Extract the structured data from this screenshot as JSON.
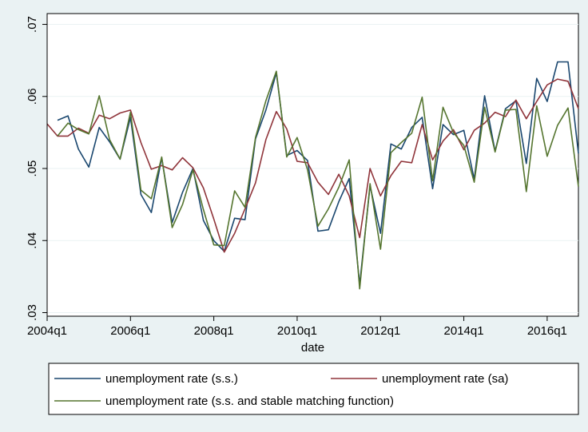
{
  "chart_data": {
    "type": "line",
    "xlabel": "date",
    "ylabel": "",
    "xlim": [
      2004.0,
      2016.75
    ],
    "ylim": [
      0.0295,
      0.0715
    ],
    "x_ticks": [
      {
        "value": 2004.0,
        "label": "2004q1"
      },
      {
        "value": 2006.0,
        "label": "2006q1"
      },
      {
        "value": 2008.0,
        "label": "2008q1"
      },
      {
        "value": 2010.0,
        "label": "2010q1"
      },
      {
        "value": 2012.0,
        "label": "2012q1"
      },
      {
        "value": 2014.0,
        "label": "2014q1"
      },
      {
        "value": 2016.0,
        "label": "2016q1"
      }
    ],
    "y_ticks": [
      {
        "value": 0.03,
        "label": ".03"
      },
      {
        "value": 0.04,
        "label": ".04"
      },
      {
        "value": 0.05,
        "label": ".05"
      },
      {
        "value": 0.06,
        "label": ".06"
      },
      {
        "value": 0.07,
        "label": ".07"
      }
    ],
    "grid": true,
    "legend_position": "bottom",
    "x": [
      "2004q1",
      "2004q2",
      "2004q3",
      "2004q4",
      "2005q1",
      "2005q2",
      "2005q3",
      "2005q4",
      "2006q1",
      "2006q2",
      "2006q3",
      "2006q4",
      "2007q1",
      "2007q2",
      "2007q3",
      "2007q4",
      "2008q1",
      "2008q2",
      "2008q3",
      "2008q4",
      "2009q1",
      "2009q2",
      "2009q3",
      "2009q4",
      "2010q1",
      "2010q2",
      "2010q3",
      "2010q4",
      "2011q1",
      "2011q2",
      "2011q3",
      "2011q4",
      "2012q1",
      "2012q2",
      "2012q3",
      "2012q4",
      "2013q1",
      "2013q2",
      "2013q3",
      "2013q4",
      "2014q1",
      "2014q2",
      "2014q3",
      "2014q4",
      "2015q1",
      "2015q2",
      "2015q3",
      "2015q4",
      "2016q1",
      "2016q2",
      "2016q3",
      "2016q4"
    ],
    "series": [
      {
        "name": "unemployment rate (s.s.)",
        "color": "#1a476f",
        "values": [
          null,
          0.0567,
          0.0573,
          0.0527,
          0.0502,
          0.0557,
          0.0537,
          0.0513,
          0.0571,
          0.0464,
          0.0439,
          0.0515,
          0.0425,
          0.0467,
          0.05,
          0.0428,
          0.04,
          0.0385,
          0.0431,
          0.0429,
          0.0541,
          0.0581,
          0.0633,
          0.0518,
          0.0525,
          0.0511,
          0.0413,
          0.0415,
          0.0454,
          0.0486,
          0.0339,
          0.0476,
          0.041,
          0.0534,
          0.0527,
          0.0557,
          0.0571,
          0.0472,
          0.0561,
          0.0547,
          0.0553,
          0.0485,
          0.0601,
          0.0524,
          0.0583,
          0.0594,
          0.0507,
          0.0625,
          0.0593,
          0.0648,
          0.0648,
          0.0521
        ]
      },
      {
        "name": "unemployment rate (sa)",
        "color": "#90353b",
        "values": [
          0.0562,
          0.0545,
          0.0545,
          0.0556,
          0.0549,
          0.0574,
          0.0569,
          0.0577,
          0.0581,
          0.0536,
          0.0499,
          0.0504,
          0.0498,
          0.0515,
          0.0501,
          0.0473,
          0.043,
          0.0384,
          0.041,
          0.0444,
          0.048,
          0.054,
          0.0579,
          0.0555,
          0.051,
          0.0508,
          0.0481,
          0.0464,
          0.0492,
          0.0462,
          0.0404,
          0.05,
          0.0462,
          0.049,
          0.051,
          0.0508,
          0.0561,
          0.0512,
          0.0538,
          0.0554,
          0.0526,
          0.0553,
          0.0563,
          0.0578,
          0.0572,
          0.0595,
          0.0569,
          0.0593,
          0.0616,
          0.0624,
          0.0621,
          0.0583
        ]
      },
      {
        "name": "unemployment rate (s.s. and stable matching function)",
        "color": "#55752f",
        "values": [
          null,
          0.0545,
          0.0563,
          0.0554,
          0.0548,
          0.0601,
          0.054,
          0.0513,
          0.0578,
          0.047,
          0.0458,
          0.0516,
          0.0418,
          0.045,
          0.0498,
          0.0443,
          0.0394,
          0.0393,
          0.0469,
          0.0446,
          0.0543,
          0.0594,
          0.0635,
          0.0516,
          0.0543,
          0.0498,
          0.042,
          0.0444,
          0.0474,
          0.0512,
          0.0333,
          0.0479,
          0.0388,
          0.0522,
          0.0536,
          0.0549,
          0.0599,
          0.0483,
          0.0585,
          0.055,
          0.0532,
          0.0481,
          0.0585,
          0.0523,
          0.0581,
          0.0582,
          0.0468,
          0.0587,
          0.0517,
          0.056,
          0.0584,
          0.0475
        ]
      }
    ]
  }
}
